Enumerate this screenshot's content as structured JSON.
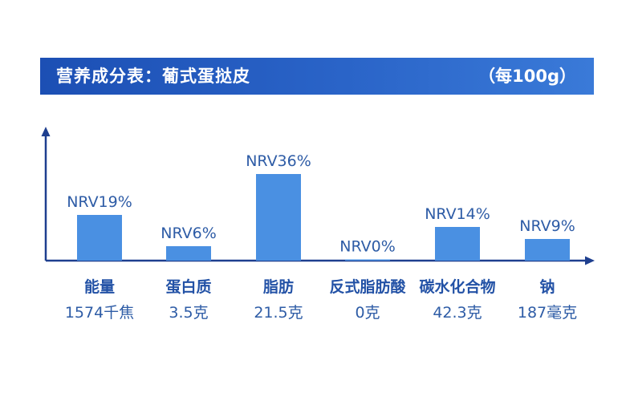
{
  "header": {
    "title": "营养成分表：葡式蛋挞皮",
    "unit": "（每100g）"
  },
  "colors": {
    "banner": "#2a64c8",
    "bar": "#4a90e2",
    "axis": "#1e3f8f",
    "label": "#2e5ca6"
  },
  "chart_data": {
    "type": "bar",
    "title": "营养成分表：葡式蛋挞皮",
    "subtitle": "（每100g）",
    "xlabel": "",
    "ylabel": "",
    "ylim": [
      0,
      40
    ],
    "grid": false,
    "legend": "none",
    "categories": [
      "能量",
      "蛋白质",
      "脂肪",
      "反式脂肪酸",
      "碳水化合物",
      "钠"
    ],
    "amounts": [
      "1574千焦",
      "3.5克",
      "21.5克",
      "0克",
      "42.3克",
      "187毫克"
    ],
    "values": [
      19,
      6,
      36,
      0,
      14,
      9
    ],
    "data_labels": [
      "NRV19%",
      "NRV6%",
      "NRV36%",
      "NRV0%",
      "NRV14%",
      "NRV9%"
    ]
  }
}
